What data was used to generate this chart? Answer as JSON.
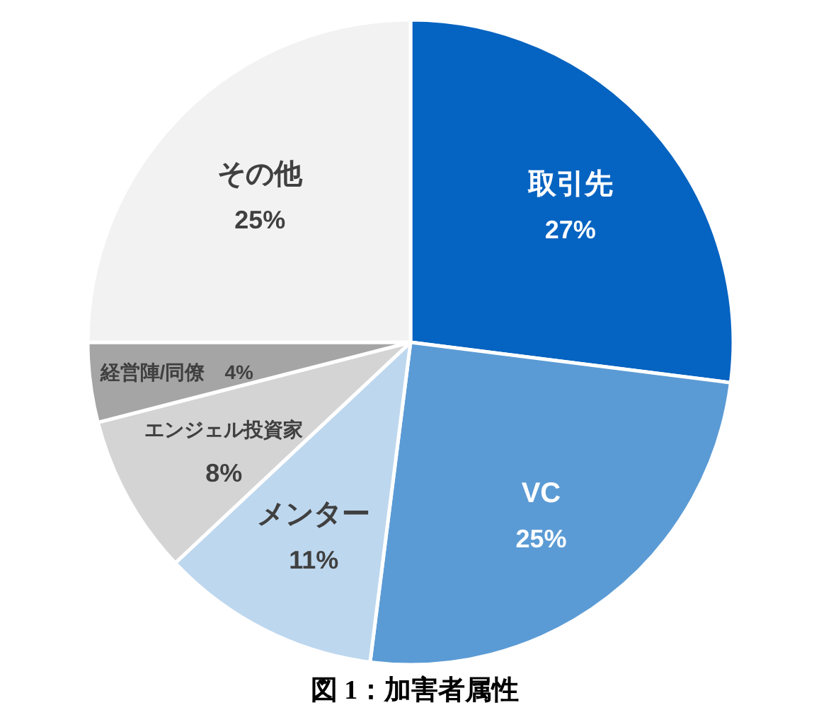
{
  "chart_data": {
    "type": "pie",
    "categories": [
      "取引先",
      "VC",
      "メンター",
      "エンジェル投資家",
      "経営陣/同僚",
      "その他"
    ],
    "values": [
      27,
      25,
      11,
      8,
      4,
      25
    ],
    "colors": [
      "#0563c1",
      "#5b9bd5",
      "#bdd7ee",
      "#d4d4d4",
      "#a5a5a5",
      "#f2f2f2"
    ],
    "value_labels": [
      "27%",
      "25%",
      "11%",
      "8%",
      "4%",
      "25%"
    ],
    "annotations": [
      "図 1：加害者属性"
    ]
  }
}
